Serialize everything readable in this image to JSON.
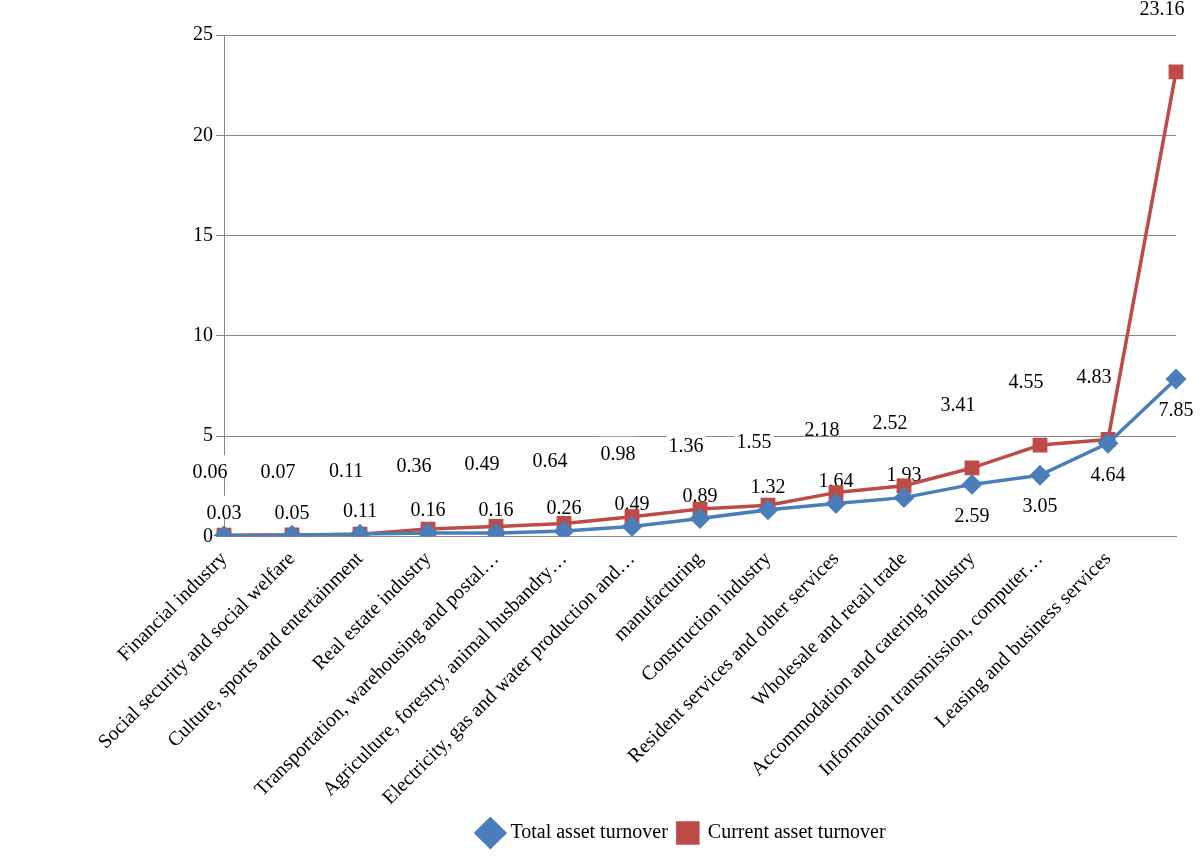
{
  "chart_data": {
    "type": "line",
    "categories": [
      "Financial industry",
      "Social security and social welfare",
      "Culture, sports and entertainment",
      "Real estate industry",
      "Transportation, warehousing and postal…",
      "Agriculture, forestry, animal husbandry…",
      "Electricity, gas and water production and…",
      "manufacturing",
      "Construction industry",
      "Resident services and other services",
      "Wholesale and retail trade",
      "Accommodation and catering industry",
      "Information transmission, computer…",
      "Leasing and business services",
      null
    ],
    "series": [
      {
        "name": "Total asset turnover",
        "color": "#4a7ebb",
        "marker": "diamond",
        "values": [
          0.03,
          0.05,
          0.11,
          0.16,
          0.16,
          0.26,
          0.49,
          0.89,
          1.32,
          1.64,
          1.93,
          2.59,
          3.05,
          4.64,
          7.85
        ]
      },
      {
        "name": "Current asset turnover",
        "color": "#be4b48",
        "marker": "square",
        "values": [
          0.06,
          0.07,
          0.11,
          0.36,
          0.49,
          0.64,
          0.98,
          1.36,
          1.55,
          2.18,
          2.52,
          3.41,
          4.55,
          4.83,
          23.16
        ]
      }
    ],
    "ylim": [
      0,
      25
    ],
    "yticks": [
      0,
      5,
      10,
      15,
      20,
      25
    ],
    "grid": "y",
    "legend": "bottom",
    "data_labels": true,
    "line_style": "solid"
  }
}
